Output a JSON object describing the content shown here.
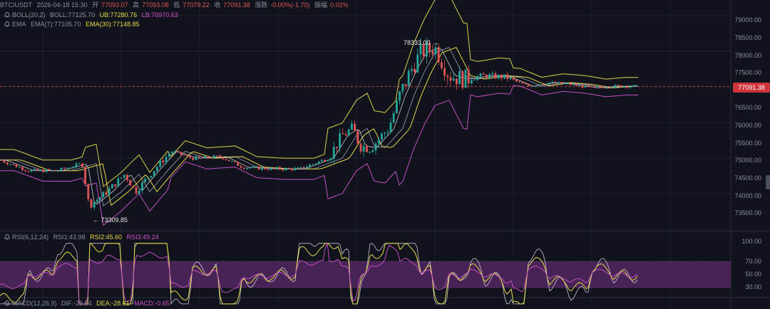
{
  "pair": "BTC/USDT",
  "datetime": "2026-04-18 15:30",
  "ohlc": {
    "open_label": "开",
    "open": "77093.07",
    "high_label": "高",
    "high": "77093.08",
    "low_label": "低",
    "low": "77079.22",
    "close_label": "收",
    "close": "77091.38",
    "change_label": "涨跌",
    "change": "-0.00%(-1.70)",
    "amp_label": "振幅",
    "amp": "0.02%"
  },
  "boll": {
    "name": "BOLL(20,2)",
    "mid": "BOLL:77125.70",
    "ub": "UB:77280.76",
    "lb": "LB:76970.63"
  },
  "ema": {
    "name": "EMA",
    "ema7": "EMA(7):77105.70",
    "ema30": "EMA(30):77148.85"
  },
  "rsi": {
    "name": "RSI(6,12,24)",
    "rsi1": "RSI1:43.98",
    "rsi2": "RSI2:45.60",
    "rsi3": "RSI3:49.24"
  },
  "macd": {
    "name": "MACD(12,26,9)",
    "dif": "DIF:-28.94",
    "dea": "DEA:-28.61",
    "macd": "MACD:-0.65"
  },
  "price_axis": [
    "79000.00",
    "78500.00",
    "78000.00",
    "77500.00",
    "77000.00",
    "76500.00",
    "76000.00",
    "75500.00",
    "75000.00",
    "74500.00",
    "74000.00",
    "73500.00"
  ],
  "rsi_axis": [
    "100.00",
    "70.00",
    "50.00",
    "30.00"
  ],
  "current_price": "77091.38",
  "high_annotation": "78333.00 →",
  "low_annotation": "← 73309.85",
  "colors": {
    "up": "#26a69a",
    "down": "#e05555",
    "boll_upper": "#d8d24a",
    "boll_lower": "#c34fc3",
    "ema7": "#e6d848",
    "ema30": "#c9c9c9",
    "rsi_band": "#5a2a6a"
  },
  "icons": {
    "alarm": "bell-icon"
  }
}
